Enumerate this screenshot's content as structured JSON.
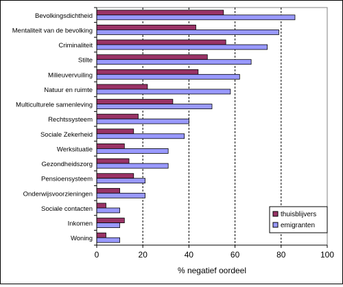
{
  "chart_data": {
    "type": "bar",
    "orientation": "horizontal",
    "categories": [
      "Bevolkingsdichtheid",
      "Mentaliteit van de bevolking",
      "Criminaliteit",
      "Stilte",
      "Milieuvervuiling",
      "Natuur en ruimte",
      "Multiculturele samenleving",
      "Rechtssysteem",
      "Sociale Zekerheid",
      "Werksituatie",
      "Gezondheidszorg",
      "Pensioensysteem",
      "Onderwijsvoorzieningen",
      "Sociale contacten",
      "Inkomen",
      "Woning"
    ],
    "series": [
      {
        "name": "thuisblijvers",
        "color": "#993366",
        "values": [
          55,
          43,
          56,
          48,
          44,
          22,
          33,
          18,
          16,
          12,
          14,
          16,
          10,
          4,
          12,
          4
        ]
      },
      {
        "name": "emigranten",
        "color": "#9999ff",
        "values": [
          86,
          79,
          74,
          67,
          62,
          58,
          50,
          40,
          38,
          31,
          31,
          21,
          21,
          10,
          10,
          10
        ]
      }
    ],
    "title": "",
    "xlabel": "% negatief oordeel",
    "ylabel": "",
    "xlim": [
      0,
      100
    ],
    "xticks": [
      "0",
      "20",
      "40",
      "60",
      "80",
      "100"
    ],
    "grid": "vertical dashed",
    "legend_position": "bottom-right"
  }
}
